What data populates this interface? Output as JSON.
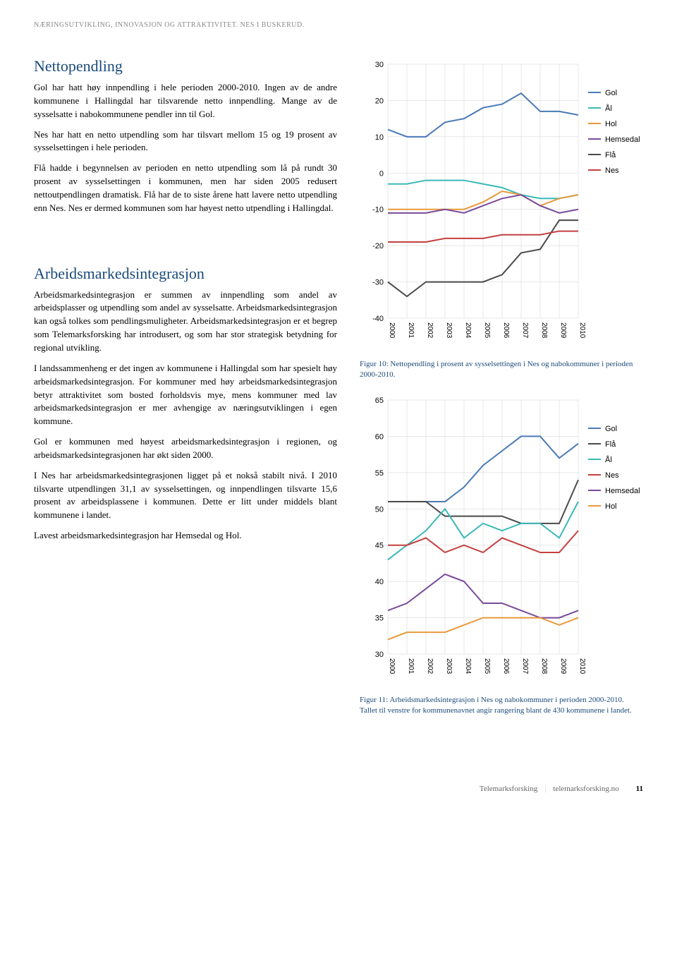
{
  "header": "NÆRINGSUTVIKLING, INNOVASJON OG ATTRAKTIVITET. NES I BUSKERUD.",
  "section1": {
    "title": "Nettopendling",
    "p1": "Gol har hatt høy innpendling i hele perioden 2000-2010. Ingen av de andre kommunene i Hallingdal har tilsvarende netto innpendling. Mange av de sysselsatte i nabokommunene pendler inn til Gol.",
    "p2": "Nes har hatt en netto utpendling som har tilsvart mellom 15 og 19 prosent av sysselsettingen i hele perioden.",
    "p3": "Flå hadde i begynnelsen av perioden en netto utpendling som lå på rundt 30 prosent av sysselsettingen i kommunen, men har siden 2005 redusert nettoutpendlingen dramatisk. Flå har de to siste årene hatt lavere netto utpendling enn Nes. Nes er dermed kommunen som har høyest netto utpendling i Hallingdal."
  },
  "section2": {
    "title": "Arbeidsmarkedsintegrasjon",
    "p1": "Arbeidsmarkedsintegrasjon er summen av innpendling som andel av arbeidsplasser og utpendling som andel av sysselsatte. Arbeidsmarkedsintegrasjon kan også tolkes som pendlingsmuligheter. Arbeidsmarkedsintegrasjon er et begrep som Telemarksforsking har introdusert, og som har stor strategisk betydning for regional utvikling.",
    "p2": "I landssammenheng er det ingen av kommunene i Hallingdal som har spesielt høy arbeidsmarkedsintegrasjon. For kommuner med høy arbeidsmarkedsintegrasjon betyr attraktivitet som bosted forholdsvis mye, mens kommuner med lav arbeidsmarkedsintegrasjon er mer avhengige av næringsutviklingen i egen kommune.",
    "p3": "Gol er kommunen med høyest arbeidsmarkedsintegrasjon i regionen, og arbeidsmarkedsintegrasjonen har økt siden 2000.",
    "p4": "I Nes har arbeidsmarkedsintegrasjonen ligget på et nokså stabilt nivå. I 2010 tilsvarte utpendlingen 31,1 av sysselsettingen, og innpendlingen tilsvarte 15,6 prosent av arbeidsplassene i kommunen. Dette er litt under middels blant kommunene i landet.",
    "p5": "Lavest arbeidsmarkedsintegrasjon har Hemsedal og Hol."
  },
  "chart1": {
    "type": "line",
    "years": [
      "2000",
      "2001",
      "2002",
      "2003",
      "2004",
      "2005",
      "2006",
      "2007",
      "2008",
      "2009",
      "2010"
    ],
    "ylim": [
      -40,
      30
    ],
    "ytick_step": 10,
    "series": [
      {
        "name": "Gol",
        "color": "#4a7ab8",
        "values": [
          12,
          10,
          10,
          14,
          15,
          18,
          19,
          22,
          17,
          17,
          16
        ]
      },
      {
        "name": "Ål",
        "color": "#3bb8b8",
        "values": [
          -3,
          -3,
          -2,
          -2,
          -2,
          -3,
          -4,
          -6,
          -7,
          -7,
          -6
        ]
      },
      {
        "name": "Hol",
        "color": "#e89a3c",
        "values": [
          -10,
          -10,
          -10,
          -10,
          -10,
          -8,
          -5,
          -6,
          -9,
          -7,
          -6
        ]
      },
      {
        "name": "Hemsedal",
        "color": "#7a4a9a",
        "values": [
          -11,
          -11,
          -11,
          -10,
          -11,
          -9,
          -7,
          -6,
          -9,
          -11,
          -10
        ]
      },
      {
        "name": "Flå",
        "color": "#4a4a4a",
        "values": [
          -30,
          -34,
          -30,
          -30,
          -30,
          -30,
          -28,
          -22,
          -21,
          -13,
          -13
        ]
      },
      {
        "name": "Nes",
        "color": "#c44040",
        "values": [
          -19,
          -19,
          -19,
          -18,
          -18,
          -18,
          -17,
          -17,
          -17,
          -16,
          -16
        ]
      }
    ],
    "caption": "Figur 10: Nettopendling i prosent av sysselsettingen i Nes og nabokommuner i perioden 2000-2010."
  },
  "chart2": {
    "type": "line",
    "years": [
      "2000",
      "2001",
      "2002",
      "2003",
      "2004",
      "2005",
      "2006",
      "2007",
      "2008",
      "2009",
      "2010"
    ],
    "ylim": [
      30,
      65
    ],
    "ytick_step": 5,
    "series": [
      {
        "name": "Gol",
        "color": "#4a7ab8",
        "values": [
          51,
          51,
          51,
          51,
          53,
          56,
          58,
          60,
          60,
          57,
          59
        ]
      },
      {
        "name": "Flå",
        "color": "#4a4a4a",
        "values": [
          51,
          51,
          51,
          49,
          49,
          49,
          49,
          48,
          48,
          48,
          54
        ]
      },
      {
        "name": "Ål",
        "color": "#3bb8b8",
        "values": [
          43,
          45,
          47,
          50,
          46,
          48,
          47,
          48,
          48,
          46,
          51
        ]
      },
      {
        "name": "Nes",
        "color": "#c44040",
        "values": [
          45,
          45,
          46,
          44,
          45,
          44,
          46,
          45,
          44,
          44,
          47
        ]
      },
      {
        "name": "Hemsedal",
        "color": "#7a4a9a",
        "values": [
          36,
          37,
          39,
          41,
          40,
          37,
          37,
          36,
          35,
          35,
          36
        ]
      },
      {
        "name": "Hol",
        "color": "#e89a3c",
        "values": [
          32,
          33,
          33,
          33,
          34,
          35,
          35,
          35,
          35,
          34,
          35
        ]
      }
    ],
    "caption": "Figur 11: Arbeidsmarkedsintegrasjon i Nes og nabokommuner i perioden 2000-2010. Tallet til venstre for kommunenavnet angir rangering blant de 430 kommunene i landet."
  },
  "footer": {
    "org": "Telemarksforsking",
    "url": "telemarksforsking.no",
    "page": "11"
  }
}
